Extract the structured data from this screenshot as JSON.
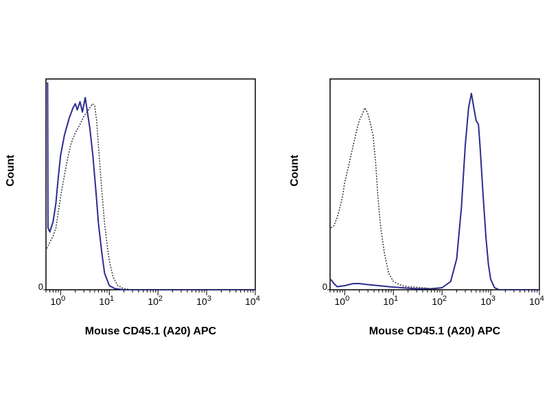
{
  "chart_data": [
    {
      "type": "line",
      "xscale": "log",
      "xlabel": "Mouse CD45.1 (A20) APC",
      "ylabel": "Count",
      "xlim": [
        0.5,
        10000
      ],
      "ylim": [
        0,
        100
      ],
      "x_ticks": [
        {
          "value": 1,
          "base": "10",
          "exp": "0"
        },
        {
          "value": 10,
          "base": "10",
          "exp": "1"
        },
        {
          "value": 100,
          "base": "10",
          "exp": "2"
        },
        {
          "value": 1000,
          "base": "10",
          "exp": "3"
        },
        {
          "value": 10000,
          "base": "10",
          "exp": "4"
        }
      ],
      "y_ticks": [
        {
          "value": 0,
          "label": "0"
        }
      ],
      "grid": false,
      "series": [
        {
          "style": "solid",
          "color": "#2b2b8f",
          "points": [
            [
              0.52,
              100
            ],
            [
              0.54,
              100
            ],
            [
              0.55,
              30
            ],
            [
              0.6,
              28
            ],
            [
              0.7,
              33
            ],
            [
              0.8,
              42
            ],
            [
              0.9,
              55
            ],
            [
              1.0,
              65
            ],
            [
              1.2,
              75
            ],
            [
              1.5,
              83
            ],
            [
              1.8,
              88
            ],
            [
              2.0,
              90
            ],
            [
              2.2,
              87
            ],
            [
              2.5,
              91
            ],
            [
              2.8,
              86
            ],
            [
              3.2,
              93
            ],
            [
              3.6,
              85
            ],
            [
              4.0,
              78
            ],
            [
              4.6,
              65
            ],
            [
              5.3,
              48
            ],
            [
              6.0,
              32
            ],
            [
              7.0,
              18
            ],
            [
              8.0,
              8
            ],
            [
              10,
              2
            ],
            [
              13,
              0.6
            ],
            [
              20,
              0
            ],
            [
              100,
              0
            ],
            [
              1000,
              0
            ],
            [
              10000,
              0
            ]
          ]
        },
        {
          "style": "dotted",
          "color": "#333333",
          "points": [
            [
              0.52,
              20
            ],
            [
              0.6,
              23
            ],
            [
              0.7,
              26
            ],
            [
              0.8,
              30
            ],
            [
              1.0,
              45
            ],
            [
              1.3,
              60
            ],
            [
              1.6,
              70
            ],
            [
              2.0,
              76
            ],
            [
              2.5,
              80
            ],
            [
              3.0,
              84
            ],
            [
              3.5,
              86
            ],
            [
              4.0,
              88
            ],
            [
              4.5,
              90
            ],
            [
              5.0,
              89
            ],
            [
              5.5,
              82
            ],
            [
              6.2,
              65
            ],
            [
              7.0,
              48
            ],
            [
              8.0,
              32
            ],
            [
              9.0,
              22
            ],
            [
              10,
              14
            ],
            [
              12,
              6
            ],
            [
              15,
              2
            ],
            [
              20,
              0.5
            ],
            [
              30,
              0
            ],
            [
              100,
              0
            ],
            [
              1000,
              0
            ],
            [
              10000,
              0
            ]
          ]
        }
      ]
    },
    {
      "type": "line",
      "xscale": "log",
      "xlabel": "Mouse CD45.1 (A20) APC",
      "ylabel": "Count",
      "xlim": [
        0.5,
        10000
      ],
      "ylim": [
        0,
        100
      ],
      "x_ticks": [
        {
          "value": 1,
          "base": "10",
          "exp": "0"
        },
        {
          "value": 10,
          "base": "10",
          "exp": "1"
        },
        {
          "value": 100,
          "base": "10",
          "exp": "2"
        },
        {
          "value": 1000,
          "base": "10",
          "exp": "3"
        },
        {
          "value": 10000,
          "base": "10",
          "exp": "4"
        }
      ],
      "y_ticks": [
        {
          "value": 0,
          "label": "0"
        }
      ],
      "grid": false,
      "series": [
        {
          "style": "solid",
          "color": "#2b2b8f",
          "points": [
            [
              0.52,
              5
            ],
            [
              0.6,
              3
            ],
            [
              0.7,
              1.5
            ],
            [
              1.0,
              2
            ],
            [
              1.5,
              3
            ],
            [
              2.0,
              3
            ],
            [
              3.0,
              2.5
            ],
            [
              5.0,
              2
            ],
            [
              8.0,
              1.5
            ],
            [
              15,
              1
            ],
            [
              30,
              0.5
            ],
            [
              60,
              0.5
            ],
            [
              100,
              1
            ],
            [
              150,
              4
            ],
            [
              200,
              15
            ],
            [
              250,
              40
            ],
            [
              300,
              70
            ],
            [
              350,
              88
            ],
            [
              400,
              95
            ],
            [
              450,
              88
            ],
            [
              500,
              82
            ],
            [
              560,
              80
            ],
            [
              600,
              70
            ],
            [
              700,
              45
            ],
            [
              800,
              25
            ],
            [
              900,
              12
            ],
            [
              1000,
              5
            ],
            [
              1200,
              1
            ],
            [
              1500,
              0
            ],
            [
              3000,
              0
            ],
            [
              10000,
              0
            ]
          ]
        },
        {
          "style": "dotted",
          "color": "#333333",
          "points": [
            [
              0.52,
              30
            ],
            [
              0.6,
              31
            ],
            [
              0.7,
              35
            ],
            [
              0.8,
              40
            ],
            [
              0.9,
              45
            ],
            [
              1.0,
              52
            ],
            [
              1.2,
              60
            ],
            [
              1.5,
              70
            ],
            [
              1.8,
              78
            ],
            [
              2.0,
              82
            ],
            [
              2.3,
              85
            ],
            [
              2.6,
              88
            ],
            [
              3.0,
              85
            ],
            [
              3.4,
              80
            ],
            [
              3.8,
              75
            ],
            [
              4.3,
              62
            ],
            [
              4.8,
              45
            ],
            [
              5.5,
              30
            ],
            [
              6.5,
              18
            ],
            [
              8.0,
              8
            ],
            [
              10,
              4
            ],
            [
              15,
              2
            ],
            [
              20,
              1.5
            ],
            [
              40,
              1
            ],
            [
              60,
              0.5
            ],
            [
              100,
              0
            ],
            [
              1000,
              0
            ],
            [
              10000,
              0
            ]
          ]
        }
      ]
    }
  ]
}
